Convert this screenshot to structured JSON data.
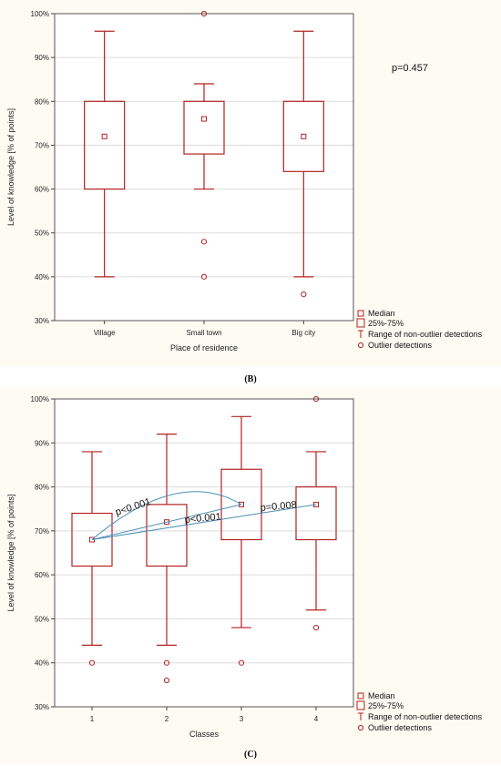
{
  "chart_data": [
    {
      "id": "B",
      "type": "box",
      "caption": "(B)",
      "xlabel": "Place of residence",
      "ylabel": "Level of knowledge [% of points]",
      "ylim": [
        30,
        100
      ],
      "yticks": [
        "30%",
        "40%",
        "50%",
        "60%",
        "70%",
        "80%",
        "90%",
        "100%"
      ],
      "grid": true,
      "categories": [
        "Village",
        "Small town",
        "Big city"
      ],
      "boxes": [
        {
          "median": 72,
          "q1": 60,
          "q3": 80,
          "min": 40,
          "max": 96,
          "outliers": []
        },
        {
          "median": 76,
          "q1": 68,
          "q3": 80,
          "min": 60,
          "max": 84,
          "outliers": [
            48,
            40,
            100
          ]
        },
        {
          "median": 72,
          "q1": 64,
          "q3": 80,
          "min": 40,
          "max": 96,
          "outliers": [
            36
          ]
        }
      ],
      "annotations": [
        "p=0.457"
      ],
      "legend": [
        "Median",
        "25%-75%",
        "Range of non-outlier detections",
        "Outlier detections"
      ],
      "color": "#b22222"
    },
    {
      "id": "C",
      "type": "box",
      "caption": "(C)",
      "xlabel": "Classes",
      "ylabel": "Level of knowledge [% of points]",
      "ylim": [
        30,
        100
      ],
      "yticks": [
        "30%",
        "40%",
        "50%",
        "60%",
        "70%",
        "80%",
        "90%",
        "100%"
      ],
      "grid": true,
      "categories": [
        "1",
        "2",
        "3",
        "4"
      ],
      "boxes": [
        {
          "median": 68,
          "q1": 62,
          "q3": 74,
          "min": 44,
          "max": 88,
          "outliers": [
            40
          ]
        },
        {
          "median": 72,
          "q1": 62,
          "q3": 76,
          "min": 44,
          "max": 92,
          "outliers": [
            40,
            36
          ]
        },
        {
          "median": 76,
          "q1": 68,
          "q3": 84,
          "min": 48,
          "max": 96,
          "outliers": [
            40
          ]
        },
        {
          "median": 76,
          "q1": 68,
          "q3": 80,
          "min": 52,
          "max": 88,
          "outliers": [
            48,
            100
          ]
        }
      ],
      "comparisons": [
        {
          "label": "p<0.001",
          "from": "1",
          "to": "3",
          "shape": "arc"
        },
        {
          "label": "p<0.001",
          "from": "1",
          "to": "3",
          "shape": "line"
        },
        {
          "label": "p=0.008",
          "from": "1",
          "to": "4",
          "shape": "line"
        }
      ],
      "legend": [
        "Median",
        "25%-75%",
        "Range of non-outlier detections",
        "Outlier detections"
      ],
      "color": "#b22222",
      "comparison_color": "#4a8fb5"
    }
  ]
}
